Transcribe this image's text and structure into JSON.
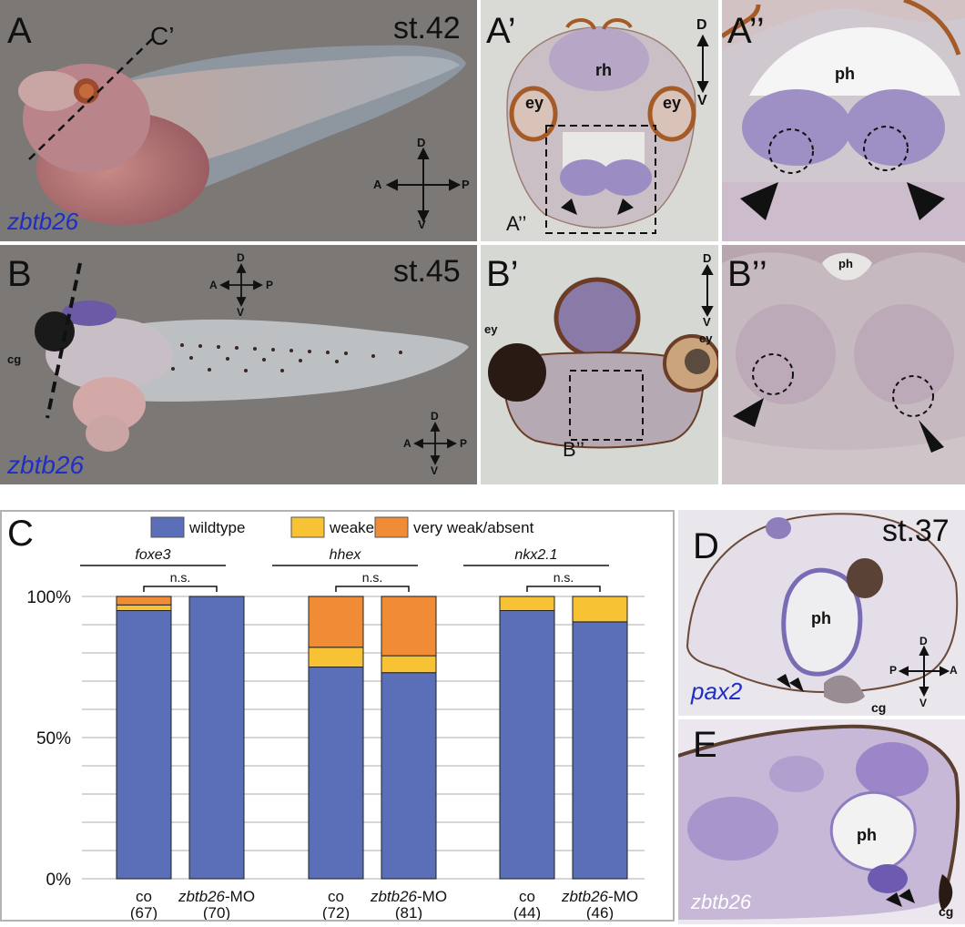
{
  "panels": {
    "A": {
      "letter": "A",
      "stage": "st.42",
      "gene": "zbtb26",
      "cut": "C’",
      "compass": {
        "d": "D",
        "v": "V",
        "a": "A",
        "p": "P"
      }
    },
    "A1": {
      "letter": "A’",
      "rh": "rh",
      "ey_left": "ey",
      "ey_right": "ey",
      "inset": "A’’",
      "compass": {
        "d": "D",
        "v": "V"
      }
    },
    "A2": {
      "letter": "A’’",
      "ph": "ph"
    },
    "B": {
      "letter": "B",
      "stage": "st.45",
      "gene": "zbtb26",
      "cg": "cg",
      "compass_top": {
        "d": "D",
        "v": "V",
        "a": "A",
        "p": "P"
      },
      "compass_bottom": {
        "d": "D",
        "v": "V",
        "a": "A",
        "p": "P"
      }
    },
    "B1": {
      "letter": "B’",
      "ey_left": "ey",
      "ey_right": "ey",
      "inset": "B’’",
      "compass": {
        "d": "D",
        "v": "V"
      }
    },
    "B2": {
      "letter": "B’’",
      "ph": "ph"
    },
    "D": {
      "letter": "D",
      "stage": "st.37",
      "ph": "ph",
      "gene": "pax2",
      "cg": "cg",
      "compass": {
        "d": "D",
        "v": "V",
        "p": "P",
        "a": "A"
      }
    },
    "E": {
      "letter": "E",
      "ph": "ph",
      "gene": "zbtb26",
      "cg": "cg"
    }
  },
  "chart_data": {
    "type": "bar",
    "stacked": true,
    "panel_letter": "C",
    "legend": [
      {
        "name": "wildtype",
        "color": "#5b6fb8"
      },
      {
        "name": "weaker",
        "color": "#f7c233"
      },
      {
        "name": "very weak/absent",
        "color": "#ef8c35"
      }
    ],
    "yticks": [
      "0%",
      "50%",
      "100%"
    ],
    "ylim": [
      0,
      100
    ],
    "grid": true,
    "significance": "n.s.",
    "groups": [
      {
        "gene": "foxe3",
        "bars": [
          {
            "label": "co",
            "italic_prefix": "",
            "n": "(67)",
            "wildtype": 95,
            "weaker": 2,
            "absent": 3
          },
          {
            "label": "-MO",
            "italic_prefix": "zbtb26",
            "n": "(70)",
            "wildtype": 100,
            "weaker": 0,
            "absent": 0
          }
        ]
      },
      {
        "gene": "hhex",
        "bars": [
          {
            "label": "co",
            "italic_prefix": "",
            "n": "(72)",
            "wildtype": 75,
            "weaker": 7,
            "absent": 18
          },
          {
            "label": "-MO",
            "italic_prefix": "zbtb26",
            "n": "(81)",
            "wildtype": 73,
            "weaker": 6,
            "absent": 21
          }
        ]
      },
      {
        "gene": "nkx2.1",
        "bars": [
          {
            "label": "co",
            "italic_prefix": "",
            "n": "(44)",
            "wildtype": 95,
            "weaker": 5,
            "absent": 0
          },
          {
            "label": "-MO",
            "italic_prefix": "zbtb26",
            "n": "(46)",
            "wildtype": 91,
            "weaker": 9,
            "absent": 0
          }
        ]
      }
    ]
  }
}
